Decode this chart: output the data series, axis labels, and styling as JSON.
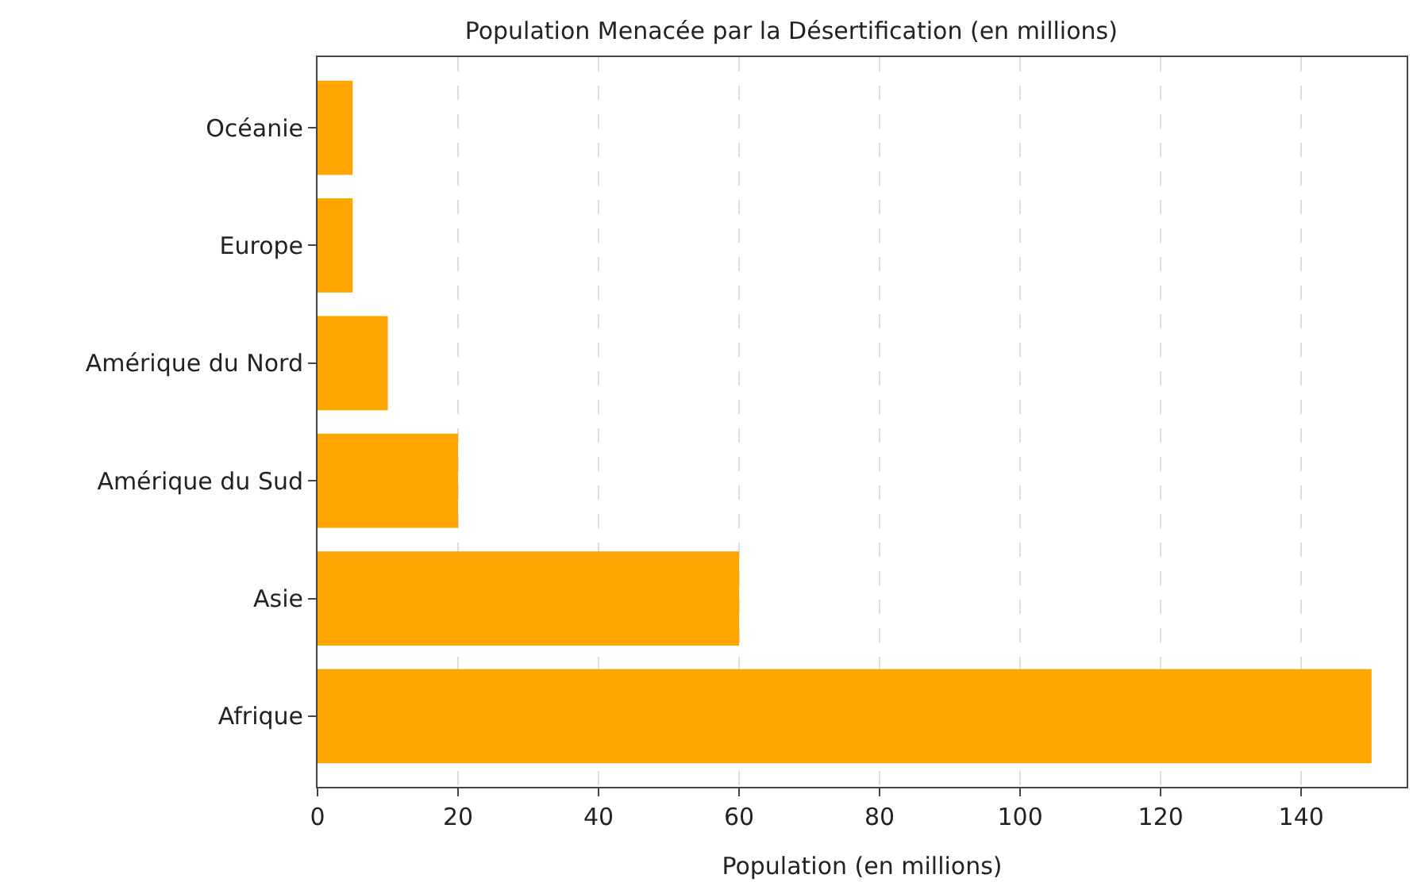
{
  "chart_data": {
    "type": "bar",
    "orientation": "horizontal",
    "title": "Population Menacée par la Désertification (en millions)",
    "xlabel": "Population (en millions)",
    "categories": [
      "Océanie",
      "Europe",
      "Amérique du Nord",
      "Amérique du Sud",
      "Asie",
      "Afrique"
    ],
    "values": [
      5,
      5,
      10,
      20,
      60,
      150
    ],
    "color": "#ffa500",
    "xlim": [
      0,
      155
    ],
    "xticks": [
      0,
      20,
      40,
      60,
      80,
      100,
      120,
      140
    ],
    "grid": "x"
  }
}
